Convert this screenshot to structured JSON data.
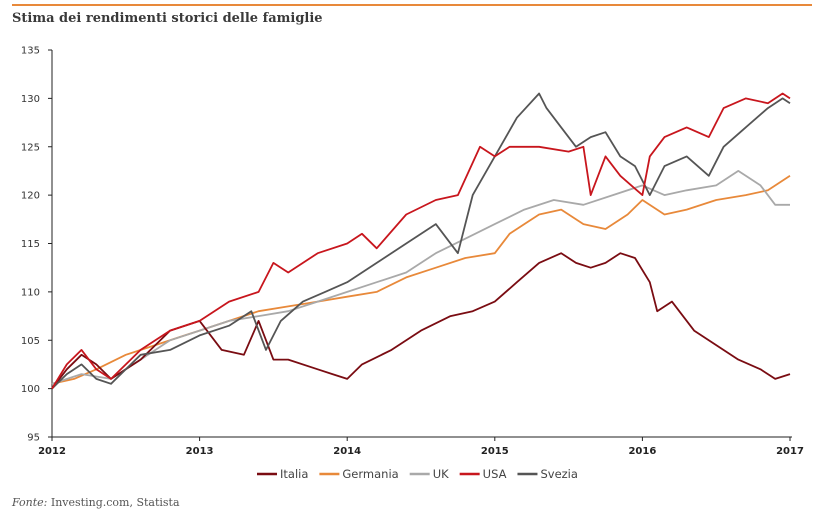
{
  "title": "Stima dei rendimenti storici delle famiglie",
  "source": {
    "label": "Fonte:",
    "text": "Investing.com, Statista"
  },
  "colors": {
    "accent_rule": "#e8893a",
    "Italia": "#7a0c12",
    "Germania": "#e8893a",
    "UK": "#a9a9a9",
    "USA": "#c8161d",
    "Svezia": "#555555"
  },
  "chart_data": {
    "type": "line",
    "title": "Stima dei rendimenti storici delle famiglie",
    "xlabel": "",
    "ylabel": "",
    "ylim": [
      95,
      135
    ],
    "yticks": [
      95,
      100,
      105,
      110,
      115,
      120,
      125,
      130,
      135
    ],
    "xlim": [
      2012,
      2017
    ],
    "xticks": [
      "2012",
      "2013",
      "2014",
      "2015",
      "2016",
      "2017"
    ],
    "legend_position": "bottom",
    "grid": false,
    "series": [
      {
        "name": "Italia",
        "x": [
          2012.0,
          2012.1,
          2012.2,
          2012.3,
          2012.4,
          2012.6,
          2012.8,
          2013.0,
          2013.15,
          2013.3,
          2013.4,
          2013.5,
          2013.6,
          2013.8,
          2013.9,
          2014.0,
          2014.1,
          2014.3,
          2014.5,
          2014.7,
          2014.85,
          2015.0,
          2015.15,
          2015.3,
          2015.45,
          2015.55,
          2015.65,
          2015.75,
          2015.85,
          2015.95,
          2016.05,
          2016.1,
          2016.2,
          2016.35,
          2016.5,
          2016.65,
          2016.8,
          2016.9,
          2017.0
        ],
        "values": [
          100,
          102,
          103.5,
          102.5,
          101,
          103,
          106,
          107,
          104,
          103.5,
          107,
          103,
          103,
          102,
          101.5,
          101,
          102.5,
          104,
          106,
          107.5,
          108,
          109,
          111,
          113,
          114,
          113,
          112.5,
          113,
          114,
          113.5,
          111,
          108,
          109,
          106,
          104.5,
          103,
          102,
          101,
          101.5
        ]
      },
      {
        "name": "Germania",
        "x": [
          2012.0,
          2012.15,
          2012.3,
          2012.5,
          2012.7,
          2012.9,
          2013.0,
          2013.2,
          2013.4,
          2013.6,
          2013.8,
          2014.0,
          2014.2,
          2014.4,
          2014.6,
          2014.8,
          2015.0,
          2015.1,
          2015.2,
          2015.3,
          2015.45,
          2015.6,
          2015.75,
          2015.9,
          2016.0,
          2016.15,
          2016.3,
          2016.5,
          2016.7,
          2016.85,
          2017.0
        ],
        "values": [
          100.5,
          101,
          102,
          103.5,
          104.5,
          105.5,
          106,
          107,
          108,
          108.5,
          109,
          109.5,
          110,
          111.5,
          112.5,
          113.5,
          114,
          116,
          117,
          118,
          118.5,
          117,
          116.5,
          118,
          119.5,
          118,
          118.5,
          119.5,
          120,
          120.5,
          122
        ]
      },
      {
        "name": "UK",
        "x": [
          2012.0,
          2012.2,
          2012.4,
          2012.6,
          2012.8,
          2013.0,
          2013.2,
          2013.4,
          2013.6,
          2013.8,
          2014.0,
          2014.2,
          2014.4,
          2014.6,
          2014.8,
          2015.0,
          2015.2,
          2015.4,
          2015.6,
          2015.8,
          2016.0,
          2016.15,
          2016.3,
          2016.5,
          2016.65,
          2016.8,
          2016.9,
          2017.0
        ],
        "values": [
          100.5,
          101.5,
          101,
          103,
          105,
          106,
          107,
          107.5,
          108,
          109,
          110,
          111,
          112,
          114,
          115.5,
          117,
          118.5,
          119.5,
          119,
          120,
          121,
          120,
          120.5,
          121,
          122.5,
          121,
          119,
          119
        ]
      },
      {
        "name": "USA",
        "x": [
          2012.0,
          2012.1,
          2012.2,
          2012.3,
          2012.4,
          2012.6,
          2012.8,
          2013.0,
          2013.2,
          2013.4,
          2013.5,
          2013.6,
          2013.8,
          2014.0,
          2014.1,
          2014.2,
          2014.4,
          2014.6,
          2014.75,
          2014.9,
          2015.0,
          2015.1,
          2015.3,
          2015.5,
          2015.6,
          2015.65,
          2015.75,
          2015.85,
          2016.0,
          2016.05,
          2016.15,
          2016.3,
          2016.45,
          2016.55,
          2016.7,
          2016.85,
          2016.95,
          2017.0
        ],
        "values": [
          100,
          102.5,
          104,
          102,
          101,
          104,
          106,
          107,
          109,
          110,
          113,
          112,
          114,
          115,
          116,
          114.5,
          118,
          119.5,
          120,
          125,
          124,
          125,
          125,
          124.5,
          125,
          120,
          124,
          122,
          120,
          124,
          126,
          127,
          126,
          129,
          130,
          129.5,
          130.5,
          130
        ]
      },
      {
        "name": "Svezia",
        "x": [
          2012.0,
          2012.1,
          2012.2,
          2012.3,
          2012.4,
          2012.6,
          2012.8,
          2013.0,
          2013.2,
          2013.35,
          2013.45,
          2013.55,
          2013.7,
          2013.85,
          2014.0,
          2014.2,
          2014.4,
          2014.6,
          2014.75,
          2014.85,
          2015.0,
          2015.15,
          2015.3,
          2015.35,
          2015.45,
          2015.55,
          2015.65,
          2015.75,
          2015.85,
          2015.95,
          2016.05,
          2016.15,
          2016.3,
          2016.45,
          2016.55,
          2016.7,
          2016.85,
          2016.95,
          2017.0
        ],
        "values": [
          100,
          101.5,
          102.5,
          101,
          100.5,
          103.5,
          104,
          105.5,
          106.5,
          108,
          104,
          107,
          109,
          110,
          111,
          113,
          115,
          117,
          114,
          120,
          124,
          128,
          130.5,
          129,
          127,
          125,
          126,
          126.5,
          124,
          123,
          120,
          123,
          124,
          122,
          125,
          127,
          129,
          130,
          129.5
        ]
      }
    ]
  }
}
